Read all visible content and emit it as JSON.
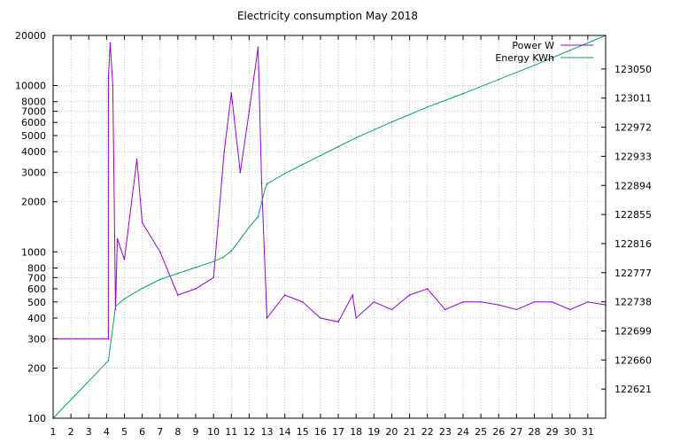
{
  "chart_data": {
    "type": "line",
    "title": "Electricity consumption May 2018",
    "xlabel": "",
    "ylabel": "",
    "y2label": "",
    "x_ticks": [
      "1",
      "2",
      "3",
      "4",
      "5",
      "6",
      "7",
      "8",
      "9",
      "10",
      "11",
      "12",
      "13",
      "14",
      "15",
      "16",
      "17",
      "18",
      "19",
      "20",
      "21",
      "22",
      "23",
      "24",
      "25",
      "26",
      "27",
      "28",
      "29",
      "30",
      "31"
    ],
    "xlim": [
      1,
      32
    ],
    "y_scale": "log",
    "ylim": [
      100,
      20000
    ],
    "y_ticks": [
      100,
      200,
      300,
      400,
      500,
      600,
      700,
      800,
      1000,
      2000,
      3000,
      4000,
      5000,
      6000,
      7000,
      8000,
      10000,
      20000
    ],
    "y_tick_labels": [
      "100",
      "200",
      "300",
      "400",
      "500",
      "600",
      "700",
      "800",
      "1000",
      "2000",
      "3000",
      "4000",
      "5000",
      "6000",
      "7000",
      "8000",
      "10000",
      "20000"
    ],
    "y2_scale": "linear",
    "y2lim": [
      122582,
      123095
    ],
    "y2_ticks": [
      122621,
      122660,
      122699,
      122738,
      122777,
      122816,
      122855,
      122894,
      122933,
      122972,
      123011,
      123050
    ],
    "grid": true,
    "legend_position": "top-right",
    "colors": {
      "power": "#9400d3",
      "energy": "#009e73"
    },
    "series": [
      {
        "name": "Power W",
        "axis": "y",
        "x": [
          1.0,
          4.1,
          4.1,
          4.2,
          4.35,
          4.5,
          4.6,
          5.0,
          5.7,
          6.0,
          7.0,
          8.0,
          9.0,
          10.0,
          10.6,
          11.0,
          11.5,
          12.0,
          12.5,
          12.7,
          13.0,
          14.0,
          15.0,
          16.0,
          17.0,
          17.8,
          18.0,
          19.0,
          20.0,
          21.0,
          22.0,
          23.0,
          24.0,
          25.0,
          26.0,
          27.0,
          28.0,
          29.0,
          30.0,
          31.0,
          32.0
        ],
        "values": [
          300,
          300,
          11000,
          18000,
          10000,
          450,
          1200,
          900,
          3600,
          1500,
          1000,
          550,
          600,
          700,
          4000,
          9000,
          3000,
          7000,
          17000,
          2600,
          400,
          550,
          500,
          400,
          380,
          550,
          400,
          500,
          450,
          550,
          600,
          450,
          500,
          500,
          480,
          450,
          500,
          500,
          450,
          500,
          480
        ]
      },
      {
        "name": "Energy KWh",
        "axis": "y2",
        "x": [
          1.0,
          4.1,
          4.5,
          5.0,
          6.0,
          7.0,
          8.0,
          9.0,
          10.0,
          10.5,
          11.0,
          11.5,
          12.0,
          12.5,
          12.9,
          13.0,
          14.0,
          15.0,
          16.0,
          17.0,
          18.0,
          20.0,
          22.0,
          24.0,
          26.0,
          28.0,
          30.0,
          32.0
        ],
        "values": [
          122582,
          122659,
          122732,
          122742,
          122756,
          122768,
          122776,
          122784,
          122792,
          122797,
          122806,
          122822,
          122838,
          122852,
          122890,
          122896,
          122910,
          122922,
          122934,
          122946,
          122958,
          122979,
          122999,
          123017,
          123036,
          123055,
          123075,
          123095
        ]
      }
    ]
  }
}
